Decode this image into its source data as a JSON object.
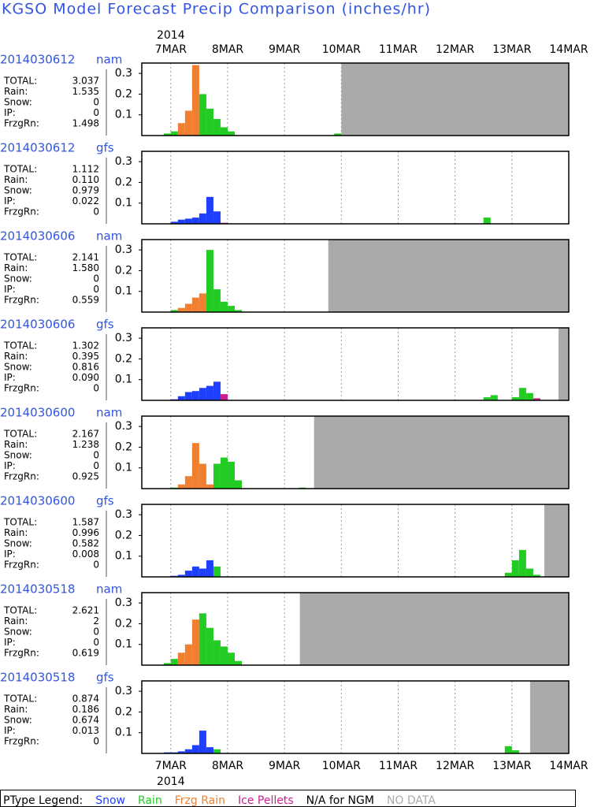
{
  "chart_data": {
    "type": "bar",
    "title": "KGSO Model Forecast Precip Comparison (inches/hr)",
    "year_label": "2014",
    "xlim": [
      6.49,
      14.0
    ],
    "xticks": [
      {
        "value": 7,
        "label": "7MAR"
      },
      {
        "value": 8,
        "label": "8MAR"
      },
      {
        "value": 9,
        "label": "9MAR"
      },
      {
        "value": 10,
        "label": "10MAR"
      },
      {
        "value": 11,
        "label": "11MAR"
      },
      {
        "value": 12,
        "label": "12MAR"
      },
      {
        "value": 13,
        "label": "13MAR"
      },
      {
        "value": 14,
        "label": "14MAR"
      }
    ],
    "ylim": [
      0,
      0.35
    ],
    "yticks": [
      0.1,
      0.2,
      0.3
    ],
    "bar_days": 0.125,
    "grid": true,
    "legend": {
      "title": "PType Legend:",
      "items": [
        {
          "name": "Snow",
          "color": "#1f3fff"
        },
        {
          "name": "Rain",
          "color": "#22cc22"
        },
        {
          "name": "Frzg Rain",
          "color": "#f08030"
        },
        {
          "name": "Ice Pellets",
          "color": "#cc1f8f"
        }
      ],
      "na_text": "N/A for NGM",
      "nodata_text": "NO DATA",
      "nodata_color": "#aaaaaa"
    },
    "panels": [
      {
        "run": "2014030612",
        "model": "nam",
        "stats": [
          [
            "TOTAL:",
            "3.037"
          ],
          [
            "Rain:",
            "1.535"
          ],
          [
            "Snow:",
            "0"
          ],
          [
            "IP:",
            "0"
          ],
          [
            "FrzgRn:",
            "1.498"
          ]
        ],
        "x": [
          6.875,
          7.0,
          7.125,
          7.25,
          7.375,
          7.5,
          7.625,
          7.75,
          7.875,
          8.0,
          9.875
        ],
        "values": [
          0.01,
          0.02,
          0.06,
          0.12,
          0.34,
          0.2,
          0.13,
          0.08,
          0.04,
          0.02,
          0.01
        ],
        "ptype": [
          1,
          1,
          2,
          2,
          2,
          1,
          1,
          1,
          1,
          1,
          1
        ],
        "no_data_from": 10.0
      },
      {
        "run": "2014030612",
        "model": "gfs",
        "stats": [
          [
            "TOTAL:",
            "1.112"
          ],
          [
            "Rain:",
            "0.110"
          ],
          [
            "Snow:",
            "0.979"
          ],
          [
            "IP:",
            "0.022"
          ],
          [
            "FrzgRn:",
            "0"
          ]
        ],
        "x": [
          7.0,
          7.125,
          7.25,
          7.375,
          7.5,
          7.625,
          7.75,
          7.875,
          12.5
        ],
        "values": [
          0.01,
          0.02,
          0.025,
          0.03,
          0.05,
          0.13,
          0.06,
          0.005,
          0.03
        ],
        "ptype": [
          0,
          0,
          0,
          0,
          0,
          0,
          0,
          3,
          1
        ],
        "no_data_from": null
      },
      {
        "run": "2014030606",
        "model": "nam",
        "stats": [
          [
            "TOTAL:",
            "2.141"
          ],
          [
            "Rain:",
            "1.580"
          ],
          [
            "Snow:",
            "0"
          ],
          [
            "IP:",
            "0"
          ],
          [
            "FrzgRn:",
            "0.559"
          ]
        ],
        "x": [
          7.0,
          7.125,
          7.25,
          7.375,
          7.5,
          7.625,
          7.75,
          7.875,
          8.0,
          8.125
        ],
        "values": [
          0.01,
          0.02,
          0.04,
          0.07,
          0.09,
          0.3,
          0.11,
          0.05,
          0.03,
          0.01
        ],
        "ptype": [
          1,
          2,
          2,
          2,
          2,
          1,
          1,
          1,
          1,
          1
        ],
        "no_data_from": 9.77
      },
      {
        "run": "2014030606",
        "model": "gfs",
        "stats": [
          [
            "TOTAL:",
            "1.302"
          ],
          [
            "Rain:",
            "0.395"
          ],
          [
            "Snow:",
            "0.816"
          ],
          [
            "IP:",
            "0.090"
          ],
          [
            "FrzgRn:",
            "0"
          ]
        ],
        "x": [
          7.0,
          7.125,
          7.25,
          7.375,
          7.5,
          7.625,
          7.75,
          7.875,
          12.5,
          12.625,
          13.0,
          13.125,
          13.25,
          13.375
        ],
        "values": [
          0.005,
          0.02,
          0.04,
          0.045,
          0.06,
          0.07,
          0.09,
          0.03,
          0.015,
          0.025,
          0.015,
          0.06,
          0.035,
          0.01
        ],
        "ptype": [
          0,
          0,
          0,
          0,
          0,
          0,
          0,
          3,
          1,
          1,
          1,
          1,
          1,
          3
        ],
        "no_data_from": 13.82
      },
      {
        "run": "2014030600",
        "model": "nam",
        "stats": [
          [
            "TOTAL:",
            "2.167"
          ],
          [
            "Rain:",
            "1.238"
          ],
          [
            "Snow:",
            "0"
          ],
          [
            "IP:",
            "0"
          ],
          [
            "FrzgRn:",
            "0.925"
          ]
        ],
        "x": [
          7.0,
          7.125,
          7.25,
          7.375,
          7.5,
          7.625,
          7.75,
          7.875,
          8.0,
          8.125,
          9.25
        ],
        "values": [
          0.005,
          0.02,
          0.06,
          0.22,
          0.12,
          0.02,
          0.12,
          0.15,
          0.13,
          0.04,
          0.005
        ],
        "ptype": [
          1,
          2,
          2,
          2,
          2,
          2,
          1,
          1,
          1,
          1,
          1
        ],
        "no_data_from": 9.52
      },
      {
        "run": "2014030600",
        "model": "gfs",
        "stats": [
          [
            "TOTAL:",
            "1.587"
          ],
          [
            "Rain:",
            "0.996"
          ],
          [
            "Snow:",
            "0.582"
          ],
          [
            "IP:",
            "0.008"
          ],
          [
            "FrzgRn:",
            "0"
          ]
        ],
        "x": [
          7.0,
          7.125,
          7.25,
          7.375,
          7.5,
          7.625,
          7.75,
          12.875,
          13.0,
          13.125,
          13.25,
          13.375
        ],
        "values": [
          0.005,
          0.01,
          0.03,
          0.05,
          0.04,
          0.08,
          0.05,
          0.02,
          0.08,
          0.13,
          0.04,
          0.01
        ],
        "ptype": [
          0,
          0,
          0,
          0,
          0,
          0,
          1,
          1,
          1,
          1,
          1,
          1
        ],
        "no_data_from": 13.57
      },
      {
        "run": "2014030518",
        "model": "nam",
        "stats": [
          [
            "TOTAL:",
            "2.621"
          ],
          [
            "Rain:",
            "2"
          ],
          [
            "Snow:",
            "0"
          ],
          [
            "IP:",
            "0"
          ],
          [
            "FrzgRn:",
            "0.619"
          ]
        ],
        "x": [
          6.875,
          7.0,
          7.125,
          7.25,
          7.375,
          7.5,
          7.625,
          7.75,
          7.875,
          8.0,
          8.125
        ],
        "values": [
          0.01,
          0.03,
          0.06,
          0.1,
          0.22,
          0.25,
          0.18,
          0.12,
          0.09,
          0.06,
          0.02
        ],
        "ptype": [
          1,
          1,
          2,
          2,
          2,
          1,
          1,
          1,
          1,
          1,
          1
        ],
        "no_data_from": 9.27
      },
      {
        "run": "2014030518",
        "model": "gfs",
        "stats": [
          [
            "TOTAL:",
            "0.874"
          ],
          [
            "Rain:",
            "0.186"
          ],
          [
            "Snow:",
            "0.674"
          ],
          [
            "IP:",
            "0.013"
          ],
          [
            "FrzgRn:",
            "0"
          ]
        ],
        "x": [
          6.875,
          7.0,
          7.125,
          7.25,
          7.375,
          7.5,
          7.625,
          7.75,
          12.875,
          13.0
        ],
        "values": [
          0.005,
          0.005,
          0.01,
          0.02,
          0.04,
          0.11,
          0.03,
          0.02,
          0.035,
          0.015
        ],
        "ptype": [
          0,
          0,
          0,
          0,
          0,
          0,
          0,
          1,
          1,
          1
        ],
        "no_data_from": 13.32
      }
    ]
  }
}
